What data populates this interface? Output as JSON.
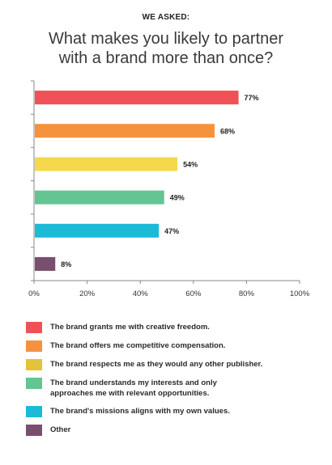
{
  "header": {
    "kicker": "WE ASKED:",
    "title": "What makes you likely to partner\nwith a brand more than once?"
  },
  "chart_data": {
    "type": "bar",
    "orientation": "horizontal",
    "title": "What makes you likely to partner with a brand more than once?",
    "xlim": [
      0,
      100
    ],
    "x_ticks": [
      "0%",
      "20%",
      "40%",
      "60%",
      "80%",
      "100%"
    ],
    "x_tick_values": [
      0,
      20,
      40,
      60,
      80,
      100
    ],
    "grid": false,
    "legend_position": "bottom",
    "categories": [
      "The brand grants me with creative freedom.",
      "The brand offers me competitive compensation.",
      "The brand respects me as they would any other publisher.",
      "The brand understands my interests and only approaches me with relevant opportunities.",
      "The brand's missions aligns with my own values.",
      "Other"
    ],
    "values": [
      77,
      68,
      54,
      49,
      47,
      8
    ],
    "value_labels": [
      "77%",
      "68%",
      "54%",
      "49%",
      "47%",
      "8%"
    ],
    "colors": [
      "#f05156",
      "#f5923e",
      "#f5d94a",
      "#64c492",
      "#1bbad6",
      "#7a4e6e"
    ]
  },
  "legend": [
    {
      "label": "The brand grants me with creative freedom.",
      "color": "#f05156"
    },
    {
      "label": "The brand offers me competitive compensation.",
      "color": "#f5923e"
    },
    {
      "label": "The brand respects me as they would any other publisher.",
      "color": "#e2c43a"
    },
    {
      "label": "The brand understands my interests and only\napproaches me with relevant opportunities.",
      "color": "#64c492"
    },
    {
      "label": "The brand's missions aligns with my own values.",
      "color": "#1bbad6"
    },
    {
      "label": "Other",
      "color": "#7a4e6e"
    }
  ]
}
